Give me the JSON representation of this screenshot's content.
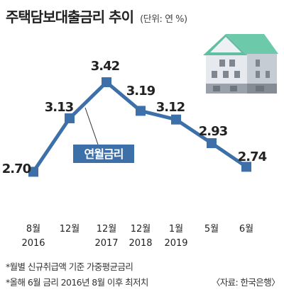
{
  "title": "주택담보대출금리 추이",
  "unit": "(단위: 연 %)",
  "colors": {
    "line": "#3d6fa8",
    "marker": "#3d6fa8",
    "callout_bg": "#3d6fa8",
    "callout_text": "#ffffff",
    "house_roof": "#5fbfa0",
    "house_wall": "#d8dde3",
    "house_base": "#9aa1aa"
  },
  "chart_data": {
    "type": "line",
    "categories": [
      [
        "8월",
        "2016"
      ],
      [
        "12월",
        ""
      ],
      [
        "12월",
        "2017"
      ],
      [
        "12월",
        "2018"
      ],
      [
        "1월",
        "2019"
      ],
      [
        "5월",
        ""
      ],
      [
        "6월",
        ""
      ]
    ],
    "series": [
      {
        "name": "연월금리",
        "values": [
          2.7,
          3.13,
          3.42,
          3.19,
          3.12,
          2.93,
          2.74
        ],
        "labels": [
          "2.70",
          "3.13",
          "3.42",
          "3.19",
          "3.12",
          "2.93",
          "2.74"
        ]
      }
    ],
    "ylim": [
      2.6,
      3.5
    ],
    "grid": false,
    "legend": "callout"
  },
  "notes": [
    "*월별 신규취급액 기준 가중평균금리",
    "*올해 6월 금리 2016년 8월 이후 최저치"
  ],
  "source": "〈자료: 한국은행〉",
  "house_icon": "house-icon"
}
